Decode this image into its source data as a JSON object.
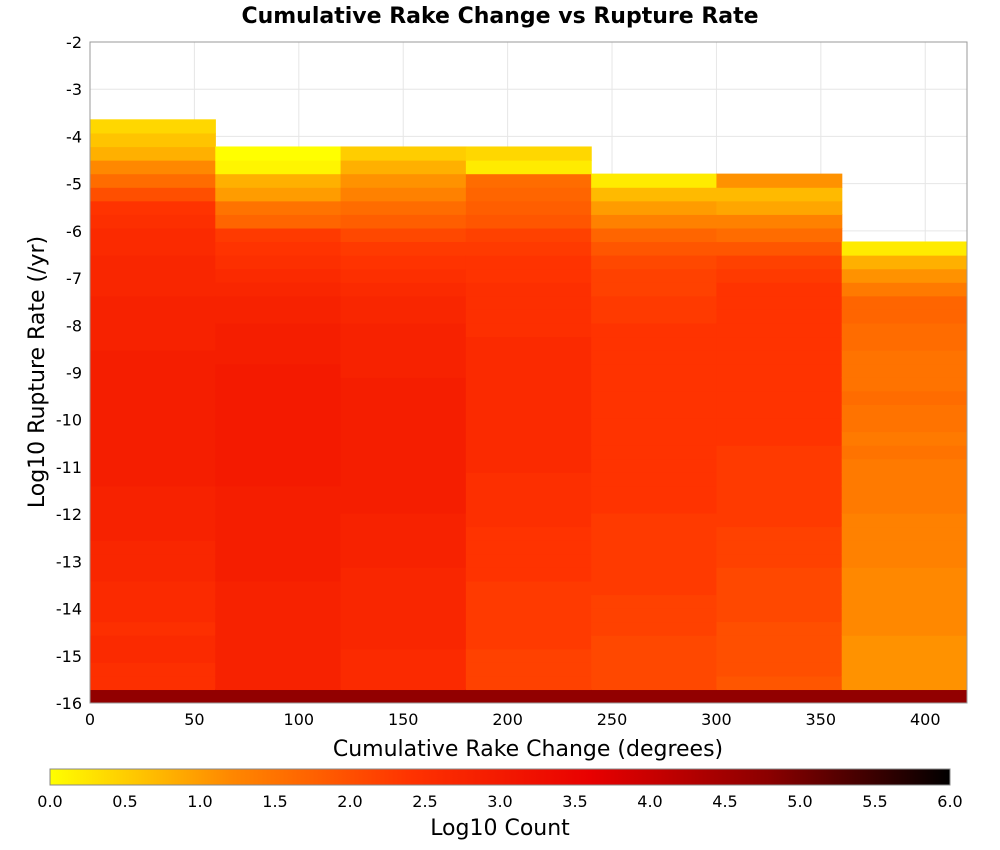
{
  "chart_data": {
    "type": "heatmap",
    "title": "Cumulative Rake Change vs Rupture Rate",
    "xlabel": "Cumulative Rake Change (degrees)",
    "ylabel": "Log10 Rupture Rate (/yr)",
    "xlim": [
      0,
      420
    ],
    "ylim": [
      -16,
      -2
    ],
    "x_ticks": [
      0,
      50,
      100,
      150,
      200,
      250,
      300,
      350,
      400
    ],
    "y_ticks": [
      -2,
      -3,
      -4,
      -5,
      -6,
      -7,
      -8,
      -9,
      -10,
      -11,
      -12,
      -13,
      -14,
      -15,
      -16
    ],
    "x_bin_width": 60,
    "y_bin_width": 0.2875,
    "y_bin_start": -16,
    "grid": true,
    "colorbar": {
      "label": "Log10 Count",
      "min": 0,
      "max": 6,
      "ticks": [
        0.0,
        0.5,
        1.0,
        1.5,
        2.0,
        2.5,
        3.0,
        3.5,
        4.0,
        4.5,
        5.0,
        5.5,
        6.0
      ],
      "colormap": [
        "#ffff00",
        "#ff8800",
        "#ff3300",
        "#e80000",
        "#8a0000",
        "#000000"
      ]
    },
    "columns": [
      {
        "x_start": 0,
        "values": [
          4.7,
          2.5,
          2.5,
          2.6,
          2.6,
          2.5,
          2.6,
          2.6,
          2.6,
          2.7,
          2.7,
          2.7,
          2.8,
          2.8,
          2.8,
          2.8,
          2.9,
          2.9,
          2.9,
          2.9,
          2.9,
          2.9,
          2.9,
          2.9,
          2.9,
          2.9,
          2.8,
          2.8,
          2.8,
          2.8,
          2.7,
          2.7,
          2.7,
          2.6,
          2.6,
          2.5,
          2.4,
          2.0,
          1.6,
          1.2,
          0.8,
          0.6,
          0.4
        ]
      },
      {
        "x_start": 60,
        "values": [
          4.7,
          2.8,
          2.8,
          2.8,
          2.8,
          2.8,
          2.8,
          2.8,
          2.8,
          2.9,
          2.9,
          2.9,
          2.9,
          2.9,
          2.9,
          2.9,
          3.0,
          3.0,
          3.0,
          3.0,
          3.0,
          3.0,
          3.0,
          3.0,
          3.0,
          2.9,
          2.9,
          2.9,
          2.8,
          2.8,
          2.7,
          2.6,
          2.5,
          2.4,
          2.3,
          1.7,
          1.5,
          1.0,
          0.8,
          0.1,
          0.0
        ]
      },
      {
        "x_start": 120,
        "values": [
          4.7,
          2.6,
          2.6,
          2.6,
          2.7,
          2.7,
          2.7,
          2.7,
          2.7,
          2.7,
          2.8,
          2.8,
          2.8,
          2.8,
          2.9,
          2.9,
          2.9,
          2.9,
          2.9,
          2.9,
          2.9,
          2.9,
          2.9,
          2.9,
          2.8,
          2.8,
          2.8,
          2.8,
          2.7,
          2.7,
          2.6,
          2.5,
          2.4,
          2.3,
          2.1,
          1.8,
          1.6,
          1.3,
          1.1,
          0.8,
          0.5
        ]
      },
      {
        "x_start": 180,
        "values": [
          4.7,
          2.2,
          2.2,
          2.2,
          2.3,
          2.3,
          2.3,
          2.3,
          2.3,
          2.4,
          2.4,
          2.4,
          2.4,
          2.5,
          2.5,
          2.5,
          2.5,
          2.6,
          2.6,
          2.6,
          2.6,
          2.6,
          2.6,
          2.6,
          2.6,
          2.6,
          2.6,
          2.5,
          2.5,
          2.5,
          2.5,
          2.4,
          2.4,
          2.3,
          2.2,
          1.9,
          1.8,
          1.7,
          1.6,
          0.2,
          0.4
        ]
      },
      {
        "x_start": 240,
        "values": [
          4.7,
          2.1,
          2.1,
          2.1,
          2.1,
          2.2,
          2.2,
          2.2,
          2.3,
          2.3,
          2.3,
          2.3,
          2.3,
          2.3,
          2.4,
          2.4,
          2.4,
          2.4,
          2.4,
          2.4,
          2.4,
          2.4,
          2.4,
          2.4,
          2.4,
          2.4,
          2.4,
          2.4,
          2.3,
          2.3,
          2.2,
          2.2,
          2.1,
          1.9,
          1.7,
          1.3,
          1.0,
          0.7,
          0.2
        ]
      },
      {
        "x_start": 300,
        "values": [
          4.7,
          1.9,
          2.0,
          2.0,
          2.0,
          2.0,
          2.1,
          2.1,
          2.1,
          2.1,
          2.2,
          2.2,
          2.2,
          2.3,
          2.3,
          2.3,
          2.3,
          2.3,
          2.3,
          2.4,
          2.4,
          2.4,
          2.4,
          2.4,
          2.4,
          2.4,
          2.4,
          2.4,
          2.4,
          2.4,
          2.4,
          2.3,
          2.2,
          1.9,
          1.6,
          1.3,
          0.9,
          0.7,
          1.1
        ]
      },
      {
        "x_start": 360,
        "values": [
          4.7,
          1.1,
          1.1,
          1.1,
          1.1,
          1.2,
          1.2,
          1.2,
          1.2,
          1.2,
          1.3,
          1.3,
          1.3,
          1.3,
          1.4,
          1.4,
          1.4,
          1.4,
          1.5,
          1.4,
          1.5,
          1.5,
          1.6,
          1.5,
          1.5,
          1.5,
          1.6,
          1.6,
          1.7,
          1.7,
          1.4,
          1.1,
          0.8,
          0.2
        ]
      }
    ]
  }
}
